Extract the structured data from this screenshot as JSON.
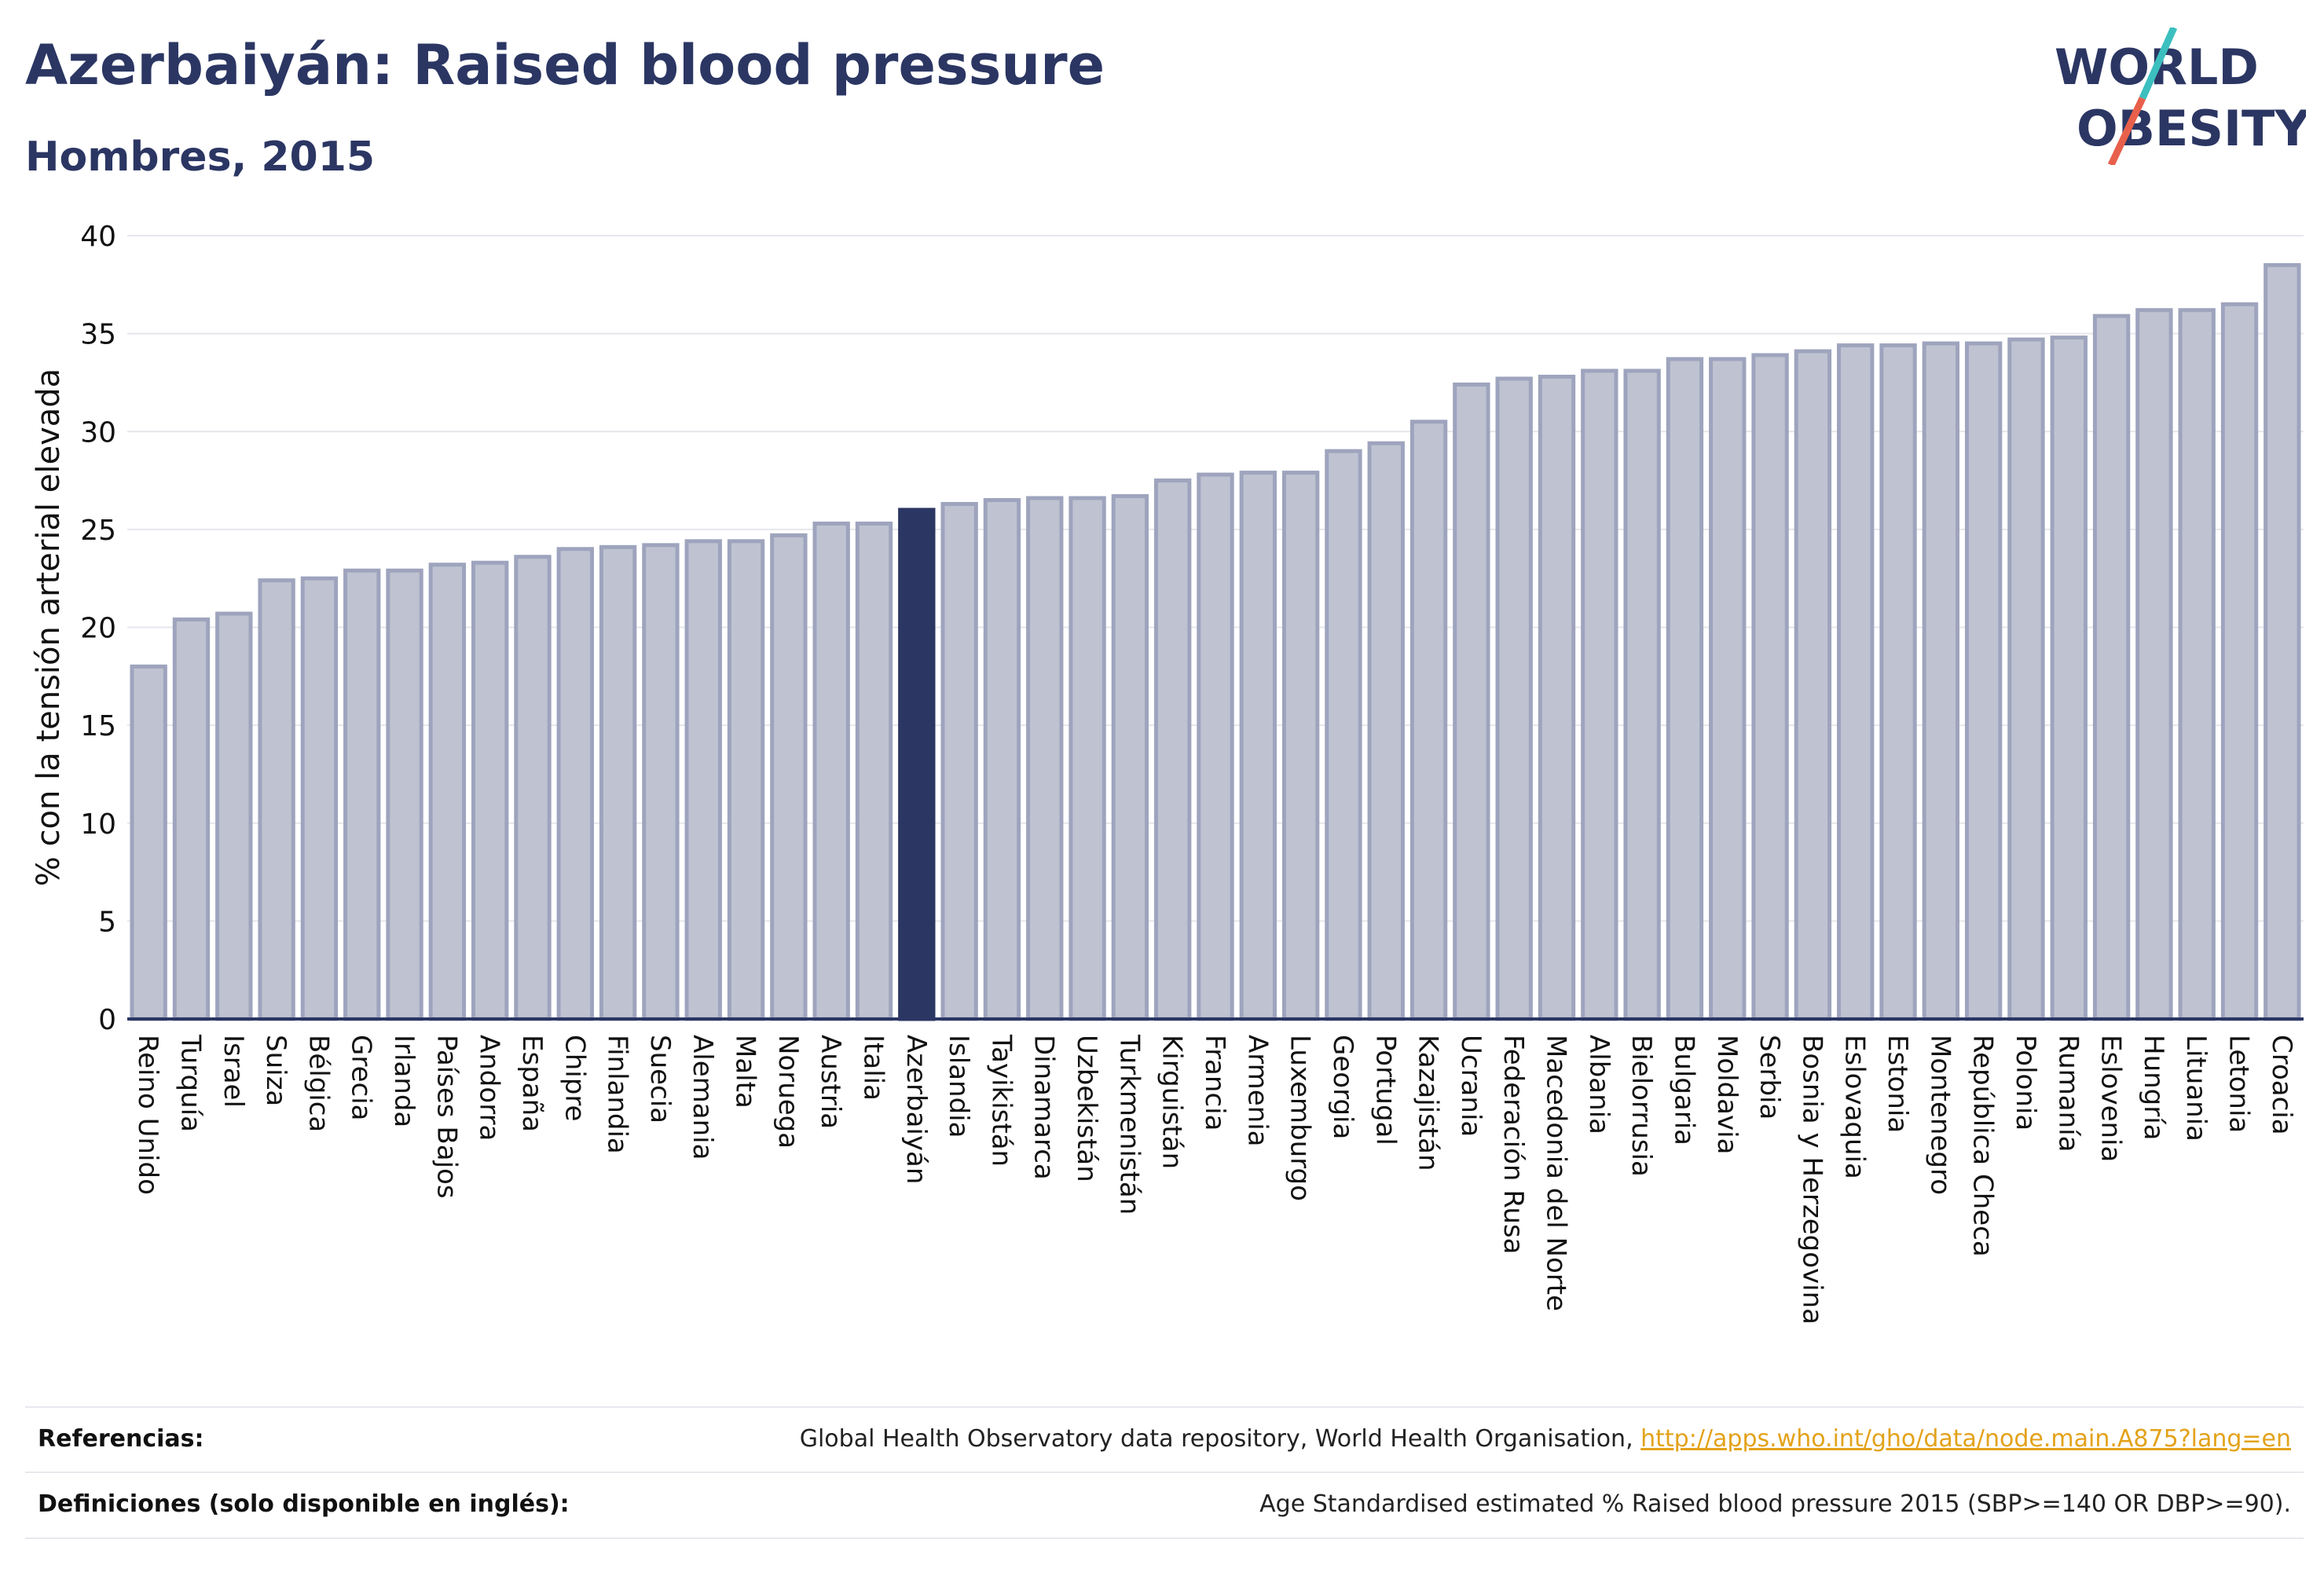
{
  "title": "Azerbaiyán: Raised blood pressure",
  "subtitle": "Hombres, 2015",
  "logo": {
    "line1": "WORLD",
    "line2": "OBESITY",
    "colors": {
      "text": "#2b3663",
      "slash_teal": "#3cbfbf",
      "slash_red": "#e8604c"
    }
  },
  "chart_data": {
    "type": "bar",
    "title": "Azerbaiyán: Raised blood pressure",
    "subtitle": "Hombres, 2015",
    "xlabel": "",
    "ylabel": "% con la tensión arterial elevada",
    "ylim": [
      0,
      40
    ],
    "yticks": [
      0,
      5,
      10,
      15,
      20,
      25,
      30,
      35,
      40
    ],
    "grid": true,
    "highlight": "Azerbaiyán",
    "colors": {
      "bar": "#bfc3d1",
      "bar_edge": "#9ea4bd",
      "highlight": "#2b3663",
      "grid": "#e6e7ec",
      "axis": "#2b3663"
    },
    "categories": [
      "Reino Unido",
      "Turquía",
      "Israel",
      "Suiza",
      "Bélgica",
      "Grecia",
      "Irlanda",
      "Países Bajos",
      "Andorra",
      "España",
      "Chipre",
      "Finlandia",
      "Suecia",
      "Alemania",
      "Malta",
      "Noruega",
      "Austria",
      "Italia",
      "Azerbaiyán",
      "Islandia",
      "Tayikistán",
      "Dinamarca",
      "Uzbekistán",
      "Turkmenistán",
      "Kirguistán",
      "Francia",
      "Armenia",
      "Luxemburgo",
      "Georgia",
      "Portugal",
      "Kazajistán",
      "Ucrania",
      "Federación Rusa",
      "Macedonia del Norte",
      "Albania",
      "Bielorrusia",
      "Bulgaria",
      "Moldavia",
      "Serbia",
      "Bosnia y Herzegovina",
      "Eslovaquia",
      "Estonia",
      "Montenegro",
      "República Checa",
      "Polonia",
      "Rumanía",
      "Eslovenia",
      "Hungría",
      "Lituania",
      "Letonia",
      "Croacia"
    ],
    "values": [
      18.0,
      20.4,
      20.7,
      22.4,
      22.5,
      22.9,
      22.9,
      23.2,
      23.3,
      23.6,
      24.0,
      24.1,
      24.2,
      24.4,
      24.4,
      24.7,
      25.3,
      25.3,
      26.0,
      26.3,
      26.5,
      26.6,
      26.6,
      26.7,
      27.5,
      27.8,
      27.9,
      27.9,
      29.0,
      29.4,
      30.5,
      32.4,
      32.7,
      32.8,
      33.1,
      33.1,
      33.7,
      33.7,
      33.9,
      34.1,
      34.4,
      34.4,
      34.5,
      34.5,
      34.7,
      34.8,
      35.9,
      36.2,
      36.2,
      36.5,
      38.5
    ]
  },
  "references": {
    "label": "Referencias:",
    "text": "Global Health Observatory data repository, World Health Organisation, ",
    "link": "http://apps.who.int/gho/data/node.main.A875?lang=en"
  },
  "definitions": {
    "label": "Definiciones (solo disponible en inglés):",
    "text": "Age Standardised estimated % Raised blood pressure 2015 (SBP>=140 OR DBP>=90)."
  }
}
